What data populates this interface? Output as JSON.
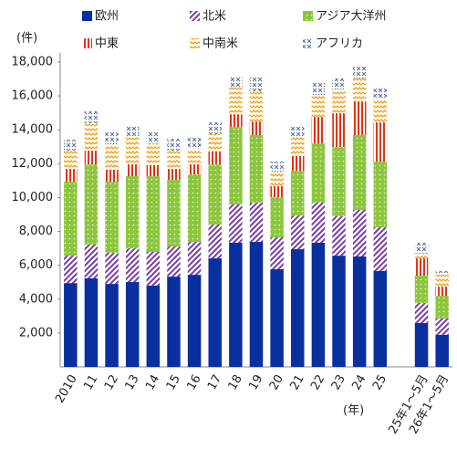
{
  "chart_data": {
    "type": "stacked_bar",
    "y_unit": "(件)",
    "x_unit": "(年)",
    "categories": [
      "2010",
      "11",
      "12",
      "13",
      "14",
      "15",
      "16",
      "17",
      "18",
      "19",
      "20",
      "21",
      "22",
      "23",
      "24",
      "25",
      null,
      "25年1～5月",
      "26年1～5月"
    ],
    "series": [
      {
        "name": "欧州",
        "color": "#0a2f9e",
        "pattern": "solid",
        "values": [
          4950,
          5230,
          4900,
          5010,
          4800,
          5330,
          5440,
          6410,
          7330,
          7380,
          5770,
          6950,
          7330,
          6570,
          6520,
          5660,
          null,
          2590,
          1890
        ]
      },
      {
        "name": "北米",
        "color": "#7a3aa6",
        "pattern": "diagonal",
        "values": [
          1620,
          1990,
          1830,
          1990,
          1990,
          1780,
          1940,
          2000,
          2260,
          2320,
          1880,
          1990,
          2370,
          2320,
          2750,
          2580,
          null,
          1180,
          970
        ]
      },
      {
        "name": "アジア大洋州",
        "color": "#8cc63f",
        "pattern": "dots",
        "values": [
          4370,
          4740,
          4210,
          4260,
          4470,
          3940,
          3990,
          3550,
          4580,
          3990,
          2370,
          2640,
          3500,
          4100,
          4420,
          3880,
          null,
          1620,
          1340
        ]
      },
      {
        "name": "中東",
        "color": "#e63312",
        "pattern": "vertical",
        "values": [
          750,
          810,
          700,
          700,
          650,
          640,
          590,
          760,
          750,
          800,
          650,
          870,
          1560,
          1990,
          1990,
          2320,
          null,
          1020,
          540
        ]
      },
      {
        "name": "中南米",
        "color": "#f39800",
        "pattern": "zigzag",
        "values": [
          1080,
          1620,
          1510,
          1620,
          1290,
          1080,
          920,
          1020,
          1570,
          1780,
          860,
          1130,
          1300,
          1400,
          1350,
          1400,
          null,
          320,
          700
        ]
      },
      {
        "name": "アフリカ",
        "color": "#5a6e9a",
        "pattern": "checker",
        "values": [
          650,
          700,
          700,
          640,
          650,
          700,
          700,
          700,
          700,
          860,
          590,
          590,
          700,
          650,
          700,
          700,
          null,
          600,
          220
        ]
      }
    ],
    "ylim": [
      0,
      18000
    ],
    "yticks": [
      {
        "value": 2000,
        "label": "2,000"
      },
      {
        "value": 4000,
        "label": "4,000"
      },
      {
        "value": 6000,
        "label": "6,000"
      },
      {
        "value": 8000,
        "label": "8,000"
      },
      {
        "value": 10000,
        "label": "10,000"
      },
      {
        "value": 12000,
        "label": "12,000"
      },
      {
        "value": 14000,
        "label": "14,000"
      },
      {
        "value": 16000,
        "label": "16,000"
      },
      {
        "value": 18000,
        "label": "18,000"
      }
    ]
  }
}
